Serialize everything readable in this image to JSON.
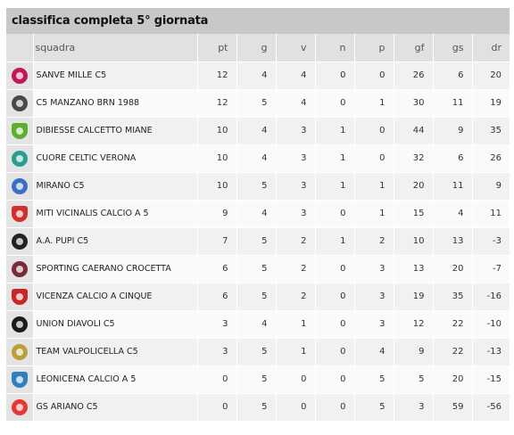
{
  "title": "classifica completa 5° giornata",
  "columns": {
    "team": "squadra",
    "pt": "pt",
    "g": "g",
    "v": "v",
    "n": "n",
    "p": "p",
    "gf": "gf",
    "gs": "gs",
    "dr": "dr"
  },
  "rows": [
    {
      "team": "SANVE MILLE C5",
      "pt": "12",
      "g": "4",
      "v": "4",
      "n": "0",
      "p": "0",
      "gf": "26",
      "gs": "6",
      "dr": "20",
      "logo": "sanve-mille-logo-icon",
      "color": "#c2185b"
    },
    {
      "team": "C5 MANZANO BRN 1988",
      "pt": "12",
      "g": "5",
      "v": "4",
      "n": "0",
      "p": "1",
      "gf": "30",
      "gs": "11",
      "dr": "19",
      "logo": "manzano-logo-icon",
      "color": "#4a4a4a"
    },
    {
      "team": "DIBIESSE CALCETTO MIANE",
      "pt": "10",
      "g": "4",
      "v": "3",
      "n": "1",
      "p": "0",
      "gf": "44",
      "gs": "9",
      "dr": "35",
      "logo": "dibiesse-logo-icon",
      "color": "#5fae2f"
    },
    {
      "team": "CUORE CELTIC VERONA",
      "pt": "10",
      "g": "4",
      "v": "3",
      "n": "1",
      "p": "0",
      "gf": "32",
      "gs": "6",
      "dr": "26",
      "logo": "cuore-celtic-logo-icon",
      "color": "#2a9d8f"
    },
    {
      "team": "MIRANO C5",
      "pt": "10",
      "g": "5",
      "v": "3",
      "n": "1",
      "p": "1",
      "gf": "20",
      "gs": "11",
      "dr": "9",
      "logo": "mirano-logo-icon",
      "color": "#3a6fc4"
    },
    {
      "team": "MITI VICINALIS CALCIO A 5",
      "pt": "9",
      "g": "4",
      "v": "3",
      "n": "0",
      "p": "1",
      "gf": "15",
      "gs": "4",
      "dr": "11",
      "logo": "miti-vicinalis-logo-icon",
      "color": "#d32f2f"
    },
    {
      "team": "A.A. PUPI C5",
      "pt": "7",
      "g": "5",
      "v": "2",
      "n": "1",
      "p": "2",
      "gf": "10",
      "gs": "13",
      "dr": "-3",
      "logo": "pupi-logo-icon",
      "color": "#222222"
    },
    {
      "team": "SPORTING CAERANO CROCETTA",
      "pt": "6",
      "g": "5",
      "v": "2",
      "n": "0",
      "p": "3",
      "gf": "13",
      "gs": "20",
      "dr": "-7",
      "logo": "sporting-caerano-logo-icon",
      "color": "#7a2a3a"
    },
    {
      "team": "VICENZA CALCIO A CINQUE",
      "pt": "6",
      "g": "5",
      "v": "2",
      "n": "0",
      "p": "3",
      "gf": "19",
      "gs": "35",
      "dr": "-16",
      "logo": "vicenza-logo-icon",
      "color": "#c62828"
    },
    {
      "team": "UNION DIAVOLI C5",
      "pt": "3",
      "g": "4",
      "v": "1",
      "n": "0",
      "p": "3",
      "gf": "12",
      "gs": "22",
      "dr": "-10",
      "logo": "union-diavoli-logo-icon",
      "color": "#1b1b1b"
    },
    {
      "team": "TEAM VALPOLICELLA C5",
      "pt": "3",
      "g": "5",
      "v": "1",
      "n": "0",
      "p": "4",
      "gf": "9",
      "gs": "22",
      "dr": "-13",
      "logo": "valpolicella-logo-icon",
      "color": "#b8a03a"
    },
    {
      "team": "LEONICENA CALCIO A 5",
      "pt": "0",
      "g": "5",
      "v": "0",
      "n": "0",
      "p": "5",
      "gf": "5",
      "gs": "20",
      "dr": "-15",
      "logo": "leonicena-logo-icon",
      "color": "#2f7fc1"
    },
    {
      "team": "GS ARIANO C5",
      "pt": "0",
      "g": "5",
      "v": "0",
      "n": "0",
      "p": "5",
      "gf": "3",
      "gs": "59",
      "dr": "-56",
      "logo": "ariano-logo-icon",
      "color": "#e53935"
    }
  ]
}
